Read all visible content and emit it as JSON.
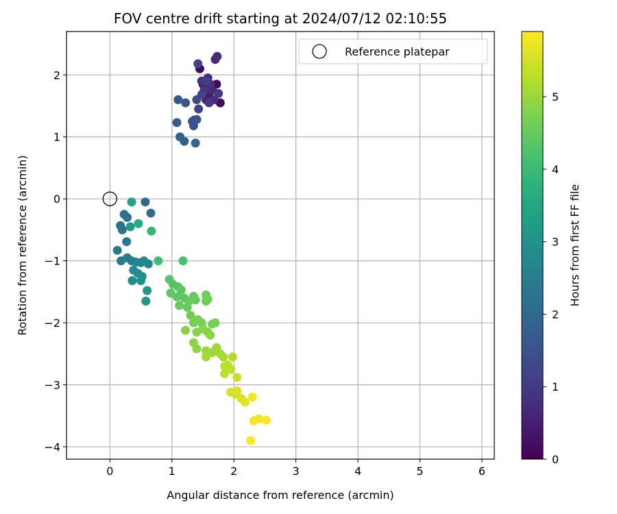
{
  "chart_data": {
    "type": "scatter",
    "title": "FOV centre drift starting at 2024/07/12 02:10:55",
    "xlabel": "Angular distance from reference (arcmin)",
    "ylabel": "Rotation from reference (arcmin)",
    "xlim": [
      -0.7,
      6.2
    ],
    "ylim": [
      -4.2,
      2.7
    ],
    "xticks": [
      0,
      1,
      2,
      3,
      4,
      5,
      6
    ],
    "yticks": [
      -4,
      -3,
      -2,
      -1,
      0,
      1,
      2
    ],
    "grid": true,
    "legend": {
      "position": "top-right",
      "label": "Reference platepar"
    },
    "reference_point": {
      "x": 0,
      "y": 0
    },
    "colorbar": {
      "label": "Hours from first FF file",
      "colormap": "viridis",
      "range": [
        0,
        5.9
      ],
      "ticks": [
        0,
        1,
        2,
        3,
        4,
        5
      ]
    },
    "points": [
      {
        "x": 1.45,
        "y": 2.1,
        "h": 0.1
      },
      {
        "x": 1.72,
        "y": 1.85,
        "h": 0.1
      },
      {
        "x": 1.78,
        "y": 1.55,
        "h": 0.1
      },
      {
        "x": 1.5,
        "y": 1.85,
        "h": 0.3
      },
      {
        "x": 1.6,
        "y": 1.7,
        "h": 0.4
      },
      {
        "x": 1.55,
        "y": 1.6,
        "h": 0.5
      },
      {
        "x": 1.7,
        "y": 2.25,
        "h": 0.6
      },
      {
        "x": 1.73,
        "y": 2.3,
        "h": 0.7
      },
      {
        "x": 1.65,
        "y": 1.75,
        "h": 0.7
      },
      {
        "x": 1.58,
        "y": 1.95,
        "h": 0.7
      },
      {
        "x": 1.62,
        "y": 1.85,
        "h": 0.8
      },
      {
        "x": 1.68,
        "y": 1.6,
        "h": 0.8
      },
      {
        "x": 1.52,
        "y": 1.75,
        "h": 0.9
      },
      {
        "x": 1.48,
        "y": 1.9,
        "h": 0.9
      },
      {
        "x": 1.75,
        "y": 1.7,
        "h": 1.0
      },
      {
        "x": 1.6,
        "y": 1.55,
        "h": 1.0
      },
      {
        "x": 1.55,
        "y": 1.9,
        "h": 1.1
      },
      {
        "x": 1.43,
        "y": 1.45,
        "h": 1.1
      },
      {
        "x": 1.42,
        "y": 2.18,
        "h": 1.2
      },
      {
        "x": 1.48,
        "y": 1.68,
        "h": 1.2
      },
      {
        "x": 1.4,
        "y": 1.6,
        "h": 1.3
      },
      {
        "x": 1.36,
        "y": 1.27,
        "h": 1.4
      },
      {
        "x": 1.33,
        "y": 1.25,
        "h": 1.4
      },
      {
        "x": 1.4,
        "y": 1.28,
        "h": 1.5
      },
      {
        "x": 1.35,
        "y": 1.18,
        "h": 1.5
      },
      {
        "x": 1.22,
        "y": 1.55,
        "h": 1.6
      },
      {
        "x": 1.1,
        "y": 1.6,
        "h": 1.7
      },
      {
        "x": 1.08,
        "y": 1.23,
        "h": 1.7
      },
      {
        "x": 1.13,
        "y": 1.0,
        "h": 1.8
      },
      {
        "x": 1.2,
        "y": 0.93,
        "h": 1.8
      },
      {
        "x": 1.38,
        "y": 0.9,
        "h": 1.9
      },
      {
        "x": 0.57,
        "y": -0.05,
        "h": 2.0
      },
      {
        "x": 0.66,
        "y": -0.23,
        "h": 2.1
      },
      {
        "x": 0.23,
        "y": -0.25,
        "h": 2.1
      },
      {
        "x": 0.28,
        "y": -0.3,
        "h": 2.2
      },
      {
        "x": 0.17,
        "y": -0.43,
        "h": 2.2
      },
      {
        "x": 0.2,
        "y": -0.5,
        "h": 2.3
      },
      {
        "x": 0.27,
        "y": -0.69,
        "h": 2.3
      },
      {
        "x": 0.12,
        "y": -0.83,
        "h": 2.4
      },
      {
        "x": 0.18,
        "y": -1.0,
        "h": 2.4
      },
      {
        "x": 0.28,
        "y": -0.95,
        "h": 2.5
      },
      {
        "x": 0.35,
        "y": -1.0,
        "h": 2.5
      },
      {
        "x": 0.42,
        "y": -1.02,
        "h": 2.6
      },
      {
        "x": 0.5,
        "y": -1.03,
        "h": 2.6
      },
      {
        "x": 0.55,
        "y": -1.0,
        "h": 2.7
      },
      {
        "x": 0.62,
        "y": -1.05,
        "h": 2.7
      },
      {
        "x": 0.38,
        "y": -1.15,
        "h": 2.8
      },
      {
        "x": 0.45,
        "y": -1.2,
        "h": 2.8
      },
      {
        "x": 0.52,
        "y": -1.25,
        "h": 2.9
      },
      {
        "x": 0.36,
        "y": -1.32,
        "h": 2.9
      },
      {
        "x": 0.5,
        "y": -1.32,
        "h": 3.0
      },
      {
        "x": 0.6,
        "y": -1.48,
        "h": 3.0
      },
      {
        "x": 0.58,
        "y": -1.65,
        "h": 3.1
      },
      {
        "x": 0.33,
        "y": -0.45,
        "h": 3.2
      },
      {
        "x": 0.35,
        "y": -0.05,
        "h": 3.4
      },
      {
        "x": 0.46,
        "y": -0.4,
        "h": 3.6
      },
      {
        "x": 0.67,
        "y": -0.52,
        "h": 3.9
      },
      {
        "x": 0.78,
        "y": -1.0,
        "h": 4.1
      },
      {
        "x": 1.18,
        "y": -1.0,
        "h": 4.2
      },
      {
        "x": 0.96,
        "y": -1.3,
        "h": 4.3
      },
      {
        "x": 1.02,
        "y": -1.38,
        "h": 4.3
      },
      {
        "x": 1.1,
        "y": -1.42,
        "h": 4.3
      },
      {
        "x": 1.15,
        "y": -1.47,
        "h": 4.4
      },
      {
        "x": 0.98,
        "y": -1.52,
        "h": 4.4
      },
      {
        "x": 1.08,
        "y": -1.58,
        "h": 4.4
      },
      {
        "x": 1.2,
        "y": -1.6,
        "h": 4.4
      },
      {
        "x": 1.27,
        "y": -1.65,
        "h": 4.5
      },
      {
        "x": 1.35,
        "y": -1.57,
        "h": 4.5
      },
      {
        "x": 1.38,
        "y": -1.63,
        "h": 4.5
      },
      {
        "x": 1.12,
        "y": -1.72,
        "h": 4.5
      },
      {
        "x": 1.25,
        "y": -1.75,
        "h": 4.5
      },
      {
        "x": 1.55,
        "y": -1.55,
        "h": 4.6
      },
      {
        "x": 1.58,
        "y": -1.62,
        "h": 4.6
      },
      {
        "x": 1.55,
        "y": -1.65,
        "h": 4.6
      },
      {
        "x": 1.3,
        "y": -1.88,
        "h": 4.6
      },
      {
        "x": 1.42,
        "y": -1.95,
        "h": 4.7
      },
      {
        "x": 1.35,
        "y": -2.0,
        "h": 4.7
      },
      {
        "x": 1.48,
        "y": -2.0,
        "h": 4.7
      },
      {
        "x": 1.65,
        "y": -2.02,
        "h": 4.7
      },
      {
        "x": 1.7,
        "y": -2.0,
        "h": 4.7
      },
      {
        "x": 1.22,
        "y": -2.12,
        "h": 4.8
      },
      {
        "x": 1.4,
        "y": -2.15,
        "h": 4.8
      },
      {
        "x": 1.5,
        "y": -2.1,
        "h": 4.8
      },
      {
        "x": 1.58,
        "y": -2.15,
        "h": 4.8
      },
      {
        "x": 1.62,
        "y": -2.2,
        "h": 4.9
      },
      {
        "x": 1.35,
        "y": -2.32,
        "h": 4.9
      },
      {
        "x": 1.4,
        "y": -2.42,
        "h": 4.9
      },
      {
        "x": 1.55,
        "y": -2.45,
        "h": 5.0
      },
      {
        "x": 1.65,
        "y": -2.48,
        "h": 5.0
      },
      {
        "x": 1.72,
        "y": -2.4,
        "h": 5.0
      },
      {
        "x": 1.78,
        "y": -2.5,
        "h": 5.1
      },
      {
        "x": 1.55,
        "y": -2.55,
        "h": 5.1
      },
      {
        "x": 1.83,
        "y": -2.55,
        "h": 5.1
      },
      {
        "x": 1.98,
        "y": -2.55,
        "h": 5.2
      },
      {
        "x": 1.85,
        "y": -2.7,
        "h": 5.3
      },
      {
        "x": 1.9,
        "y": -2.68,
        "h": 5.3
      },
      {
        "x": 1.95,
        "y": -2.75,
        "h": 5.3
      },
      {
        "x": 1.85,
        "y": -2.82,
        "h": 5.3
      },
      {
        "x": 2.05,
        "y": -2.88,
        "h": 5.4
      },
      {
        "x": 1.95,
        "y": -3.12,
        "h": 5.5
      },
      {
        "x": 2.02,
        "y": -3.15,
        "h": 5.5
      },
      {
        "x": 2.05,
        "y": -3.1,
        "h": 5.6
      },
      {
        "x": 2.12,
        "y": -3.22,
        "h": 5.6
      },
      {
        "x": 2.18,
        "y": -3.28,
        "h": 5.7
      },
      {
        "x": 2.3,
        "y": -3.2,
        "h": 5.8
      },
      {
        "x": 2.32,
        "y": -3.58,
        "h": 5.8
      },
      {
        "x": 2.4,
        "y": -3.55,
        "h": 5.8
      },
      {
        "x": 2.52,
        "y": -3.57,
        "h": 5.9
      },
      {
        "x": 2.27,
        "y": -3.9,
        "h": 5.9
      }
    ]
  }
}
